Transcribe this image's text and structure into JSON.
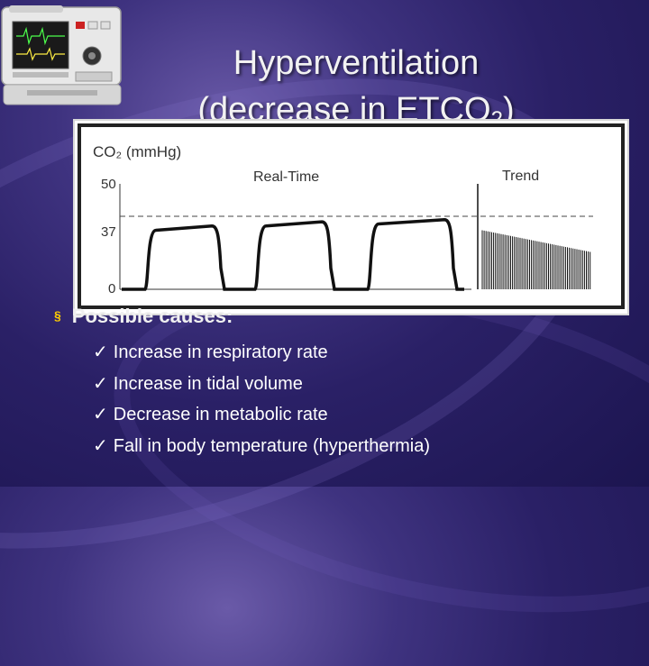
{
  "slide": {
    "title_line1": "Hyperventilation",
    "title_line2_prefix": "(decrease in ETCO",
    "title_line2_sub": "2",
    "title_line2_suffix": ")"
  },
  "chart": {
    "ylabel": "CO₂ (mmHg)",
    "realtime_label": "Real-Time",
    "trend_label": "Trend",
    "y_ticks": [
      "50",
      "37",
      "0"
    ]
  },
  "chart_data": {
    "type": "line",
    "ylabel": "CO₂ (mmHg)",
    "ylim": [
      0,
      50
    ],
    "reference_line": 37,
    "annotations": [
      "Real-Time",
      "Trend"
    ],
    "series": [
      {
        "values": [
          0,
          28,
          29,
          30,
          0,
          0,
          30,
          31,
          32,
          0,
          0,
          31,
          32,
          33,
          0
        ]
      }
    ]
  },
  "content": {
    "heading_bullet": "§",
    "heading": "Possible causes:",
    "check_glyph": "✓",
    "items": [
      "Increase in respiratory rate",
      "Increase in tidal volume",
      "Decrease in metabolic rate",
      "Fall in body temperature (hyperthermia)"
    ]
  }
}
